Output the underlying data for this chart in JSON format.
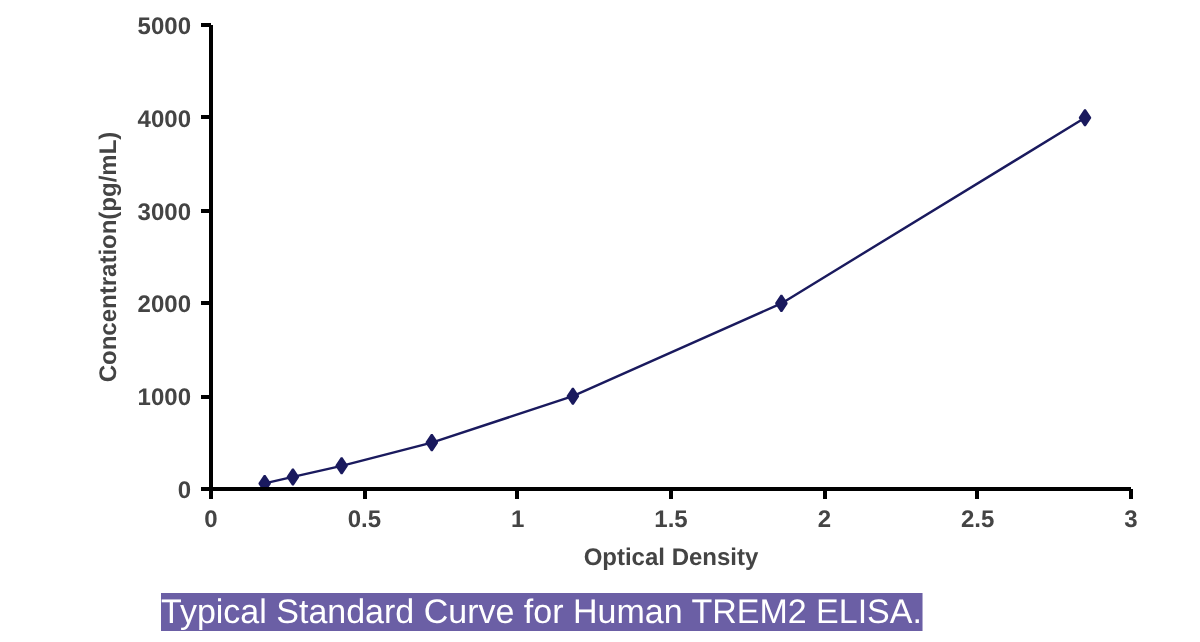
{
  "chart_data": {
    "type": "line",
    "xlabel": "Optical Density",
    "ylabel": "Concentration(pg/mL)",
    "x": [
      0.175,
      0.267,
      0.426,
      0.72,
      1.18,
      1.86,
      2.85
    ],
    "series": [
      {
        "color": "#1a1a5e",
        "values": [
          60,
          130,
          250,
          500,
          1000,
          2000,
          4000
        ]
      }
    ],
    "marker": "diamond",
    "line_style": "solid",
    "grid": false,
    "xlim": [
      0,
      3
    ],
    "ylim": [
      0,
      5000
    ],
    "xticks": [
      0,
      0.5,
      1,
      1.5,
      2,
      2.5,
      3
    ],
    "yticks": [
      0,
      1000,
      2000,
      3000,
      4000,
      5000
    ],
    "annotations": [
      "Typical Standard Curve for Human TREM2 ELISA."
    ]
  }
}
